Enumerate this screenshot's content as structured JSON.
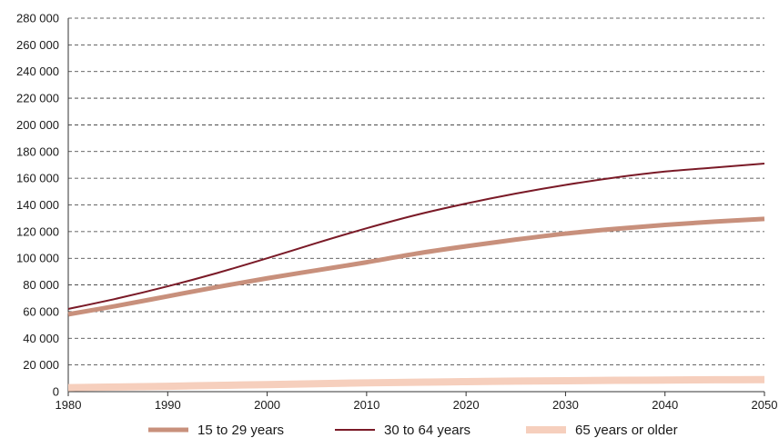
{
  "chart_data": {
    "type": "line",
    "title": "",
    "xlabel": "",
    "ylabel": "",
    "xlim": [
      1980,
      2050
    ],
    "ylim": [
      0,
      280000
    ],
    "x_ticks": [
      1980,
      1990,
      2000,
      2010,
      2020,
      2030,
      2040,
      2050
    ],
    "x_tick_labels": [
      "1980",
      "1990",
      "2000",
      "2010",
      "2020",
      "2030",
      "2040",
      "2050"
    ],
    "y_ticks": [
      0,
      20000,
      40000,
      60000,
      80000,
      100000,
      120000,
      140000,
      160000,
      180000,
      200000,
      220000,
      240000,
      260000,
      280000
    ],
    "y_tick_labels": [
      "0",
      "20 000",
      "40 000",
      "60 000",
      "80 000",
      "100 000",
      "120 000",
      "140 000",
      "160 000",
      "180 000",
      "200 000",
      "220 000",
      "240 000",
      "260 000",
      "280 000"
    ],
    "grid": "horizontal dashed",
    "legend_position": "bottom",
    "x": [
      1980,
      1985,
      1990,
      1995,
      2000,
      2005,
      2010,
      2015,
      2020,
      2025,
      2030,
      2035,
      2040,
      2045,
      2050
    ],
    "series": [
      {
        "name": "15 to 29 years",
        "color": "#c8907c",
        "width": 5,
        "values": [
          58000,
          64500,
          71500,
          78500,
          85000,
          91000,
          97000,
          103500,
          109000,
          114000,
          118500,
          122000,
          125000,
          127500,
          129500
        ]
      },
      {
        "name": "30 to 64 years",
        "color": "#7a1a27",
        "width": 2,
        "values": [
          62000,
          70000,
          79000,
          89000,
          100000,
          111500,
          122500,
          132500,
          141000,
          148500,
          155000,
          160500,
          165000,
          168000,
          171000
        ]
      },
      {
        "name": "65 years or older",
        "color": "#f6cfbd",
        "width": 8,
        "values": [
          3000,
          3500,
          4000,
          4700,
          5300,
          6000,
          6600,
          7100,
          7500,
          7900,
          8200,
          8500,
          8700,
          8900,
          9000
        ]
      }
    ]
  }
}
